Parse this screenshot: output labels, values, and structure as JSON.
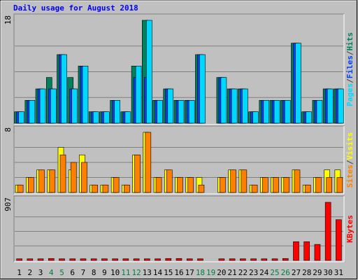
{
  "title": "Daily usage for August 2018",
  "legend_separator": "/",
  "x_axis": {
    "categories": [
      "1",
      "2",
      "3",
      "4",
      "5",
      "6",
      "7",
      "8",
      "9",
      "10",
      "11",
      "12",
      "13",
      "14",
      "15",
      "16",
      "17",
      "18",
      "19",
      "20",
      "21",
      "22",
      "23",
      "24",
      "25",
      "26",
      "27",
      "28",
      "29",
      "30",
      "31"
    ],
    "category_colors": [
      "#000000",
      "#000000",
      "#000000",
      "#008040",
      "#008040",
      "#000000",
      "#000000",
      "#000000",
      "#000000",
      "#000000",
      "#008040",
      "#008040",
      "#000000",
      "#000000",
      "#000000",
      "#000000",
      "#000000",
      "#008040",
      "#008040",
      "#000000",
      "#000000",
      "#000000",
      "#000000",
      "#000000",
      "#008040",
      "#008040",
      "#000000",
      "#000000",
      "#000000",
      "#000000",
      "#000000"
    ]
  },
  "chart_data": [
    {
      "type": "bar",
      "ylim": [
        0,
        18
      ],
      "yticks": [
        18
      ],
      "grid": true,
      "series": [
        {
          "name": "Hits",
          "color": "#00805C",
          "values": [
            2,
            4,
            6,
            8,
            12,
            8,
            10,
            2,
            2,
            4,
            2,
            10,
            18,
            4,
            6,
            4,
            4,
            12,
            0,
            8,
            6,
            6,
            2,
            4,
            4,
            4,
            14,
            2,
            4,
            6,
            6
          ]
        },
        {
          "name": "Files",
          "color": "#0040FF",
          "values": [
            2,
            4,
            6,
            6,
            12,
            6,
            10,
            2,
            2,
            4,
            2,
            8,
            8,
            4,
            6,
            4,
            4,
            12,
            0,
            8,
            6,
            6,
            2,
            4,
            4,
            4,
            14,
            2,
            4,
            6,
            6
          ]
        },
        {
          "name": "Pages",
          "color": "#00D8FF",
          "values": [
            2,
            4,
            6,
            6,
            12,
            6,
            10,
            2,
            2,
            4,
            2,
            10,
            18,
            4,
            6,
            4,
            4,
            12,
            0,
            8,
            6,
            6,
            2,
            4,
            4,
            4,
            14,
            2,
            4,
            6,
            6
          ]
        }
      ]
    },
    {
      "type": "bar",
      "ylim": [
        0,
        8
      ],
      "yticks": [
        8
      ],
      "grid": true,
      "series": [
        {
          "name": "Visits",
          "color": "#FFFF00",
          "values": [
            1,
            2,
            3,
            3,
            6,
            3,
            5,
            1,
            1,
            2,
            1,
            5,
            8,
            2,
            3,
            2,
            2,
            2,
            0,
            2,
            3,
            3,
            1,
            2,
            2,
            2,
            3,
            1,
            2,
            3,
            3
          ]
        },
        {
          "name": "Sites",
          "color": "#FF8000",
          "values": [
            1,
            2,
            3,
            3,
            5,
            4,
            4,
            1,
            1,
            2,
            1,
            5,
            8,
            2,
            3,
            2,
            2,
            1,
            0,
            2,
            3,
            3,
            1,
            2,
            2,
            2,
            3,
            1,
            2,
            2,
            2
          ]
        }
      ]
    },
    {
      "type": "bar",
      "ylim": [
        0,
        907
      ],
      "yticks": [
        907
      ],
      "grid": true,
      "series": [
        {
          "name": "KBytes",
          "color": "#FF0000",
          "values": [
            25,
            25,
            25,
            30,
            25,
            25,
            25,
            25,
            25,
            25,
            25,
            25,
            25,
            25,
            30,
            30,
            25,
            25,
            0,
            25,
            25,
            25,
            25,
            25,
            25,
            30,
            292,
            292,
            250,
            907,
            636
          ]
        }
      ]
    }
  ]
}
